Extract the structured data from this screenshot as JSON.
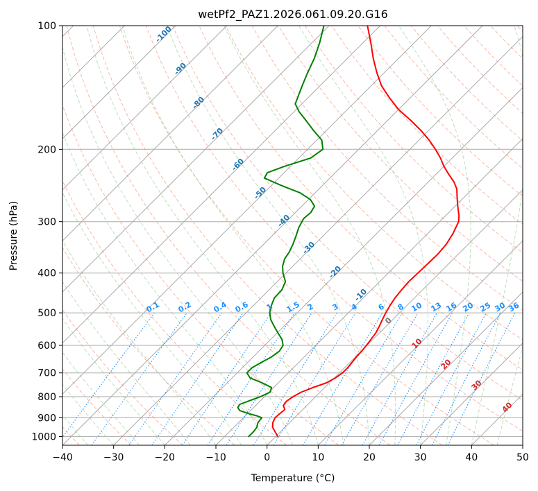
{
  "chart_data": {
    "type": "line",
    "subtype": "skew-t log-p diagram",
    "title": "wetPf2_PAZ1.2026.061.09.20.G16",
    "xlabel": "Temperature (°C)",
    "ylabel": "Pressure (hPa)",
    "xlim": [
      -40,
      50
    ],
    "ylim": [
      1050,
      100
    ],
    "x_ticks": [
      -40,
      -30,
      -20,
      -10,
      0,
      10,
      20,
      30,
      40,
      50
    ],
    "y_ticks": [
      100,
      200,
      300,
      400,
      500,
      600,
      700,
      800,
      900,
      1000
    ],
    "grid": true,
    "series": [
      {
        "name": "Temperature",
        "color": "#ff0000",
        "points": [
          [
            1000,
            0.4
          ],
          [
            975,
            -1.0
          ],
          [
            950,
            -2.4
          ],
          [
            925,
            -3.3
          ],
          [
            900,
            -3.8
          ],
          [
            880,
            -3.7
          ],
          [
            860,
            -3.5
          ],
          [
            840,
            -4.6
          ],
          [
            820,
            -4.8
          ],
          [
            800,
            -4.4
          ],
          [
            780,
            -3.7
          ],
          [
            760,
            -2.3
          ],
          [
            740,
            -0.6
          ],
          [
            720,
            0.2
          ],
          [
            700,
            0.6
          ],
          [
            680,
            0.6
          ],
          [
            660,
            0.4
          ],
          [
            640,
            0.2
          ],
          [
            620,
            0.1
          ],
          [
            600,
            -0.1
          ],
          [
            580,
            -0.4
          ],
          [
            560,
            -0.7
          ],
          [
            540,
            -1.3
          ],
          [
            520,
            -2.0
          ],
          [
            500,
            -2.7
          ],
          [
            480,
            -3.3
          ],
          [
            460,
            -3.8
          ],
          [
            440,
            -4.1
          ],
          [
            420,
            -4.3
          ],
          [
            400,
            -4.2
          ],
          [
            380,
            -4.1
          ],
          [
            360,
            -4.0
          ],
          [
            340,
            -4.3
          ],
          [
            320,
            -5.1
          ],
          [
            300,
            -6.3
          ],
          [
            290,
            -7.4
          ],
          [
            280,
            -8.8
          ],
          [
            270,
            -10.2
          ],
          [
            260,
            -11.6
          ],
          [
            250,
            -13.0
          ],
          [
            240,
            -15.0
          ],
          [
            230,
            -17.5
          ],
          [
            220,
            -20.0
          ],
          [
            210,
            -22.3
          ],
          [
            200,
            -25.0
          ],
          [
            190,
            -28.0
          ],
          [
            180,
            -31.5
          ],
          [
            170,
            -35.5
          ],
          [
            160,
            -40.0
          ],
          [
            150,
            -44.0
          ],
          [
            140,
            -48.0
          ],
          [
            130,
            -51.5
          ],
          [
            120,
            -55.0
          ],
          [
            110,
            -58.5
          ],
          [
            100,
            -62.5
          ]
        ]
      },
      {
        "name": "Dewpoint",
        "color": "#008000",
        "points": [
          [
            1000,
            -5.3
          ],
          [
            990,
            -5.3
          ],
          [
            970,
            -5.3
          ],
          [
            950,
            -5.5
          ],
          [
            925,
            -6.2
          ],
          [
            900,
            -6.4
          ],
          [
            890,
            -7.8
          ],
          [
            880,
            -9.7
          ],
          [
            865,
            -12.1
          ],
          [
            850,
            -13.1
          ],
          [
            835,
            -13.3
          ],
          [
            820,
            -12.3
          ],
          [
            800,
            -10.8
          ],
          [
            780,
            -9.8
          ],
          [
            760,
            -10.4
          ],
          [
            740,
            -13.2
          ],
          [
            720,
            -16.5
          ],
          [
            700,
            -18.1
          ],
          [
            680,
            -18.1
          ],
          [
            660,
            -17.3
          ],
          [
            640,
            -16.4
          ],
          [
            620,
            -16.0
          ],
          [
            600,
            -16.4
          ],
          [
            580,
            -17.8
          ],
          [
            560,
            -19.8
          ],
          [
            540,
            -21.8
          ],
          [
            520,
            -23.8
          ],
          [
            500,
            -25.4
          ],
          [
            480,
            -26.5
          ],
          [
            460,
            -27.4
          ],
          [
            440,
            -27.5
          ],
          [
            420,
            -28.4
          ],
          [
            400,
            -30.6
          ],
          [
            385,
            -32.0
          ],
          [
            370,
            -33.0
          ],
          [
            355,
            -33.5
          ],
          [
            340,
            -34.3
          ],
          [
            325,
            -35.3
          ],
          [
            310,
            -36.4
          ],
          [
            295,
            -37.2
          ],
          [
            285,
            -37.0
          ],
          [
            275,
            -37.5
          ],
          [
            265,
            -39.6
          ],
          [
            255,
            -43.0
          ],
          [
            245,
            -48.0
          ],
          [
            235,
            -52.8
          ],
          [
            228,
            -53.3
          ],
          [
            220,
            -51.2
          ],
          [
            210,
            -47.7
          ],
          [
            200,
            -47.0
          ],
          [
            190,
            -49.0
          ],
          [
            180,
            -52.5
          ],
          [
            170,
            -56.0
          ],
          [
            162,
            -59.0
          ],
          [
            155,
            -61.3
          ],
          [
            150,
            -62.0
          ],
          [
            140,
            -63.5
          ],
          [
            130,
            -65.0
          ],
          [
            120,
            -66.5
          ],
          [
            110,
            -68.5
          ],
          [
            100,
            -71.0
          ]
        ]
      }
    ],
    "dry_adiabat_labels": [
      "-100",
      "-90",
      "-80",
      "-70",
      "-60",
      "-50",
      "-40",
      "-30",
      "-20",
      "-10"
    ],
    "moist_adiabat_labels": [
      "0",
      "10",
      "20",
      "30",
      "40"
    ],
    "mixing_ratio_labels": [
      "0.1",
      "0.2",
      "0.4",
      "0.6",
      "1",
      "1.5",
      "2",
      "3",
      "4",
      "6",
      "8",
      "10",
      "13",
      "16",
      "20",
      "25",
      "30",
      "36"
    ]
  }
}
